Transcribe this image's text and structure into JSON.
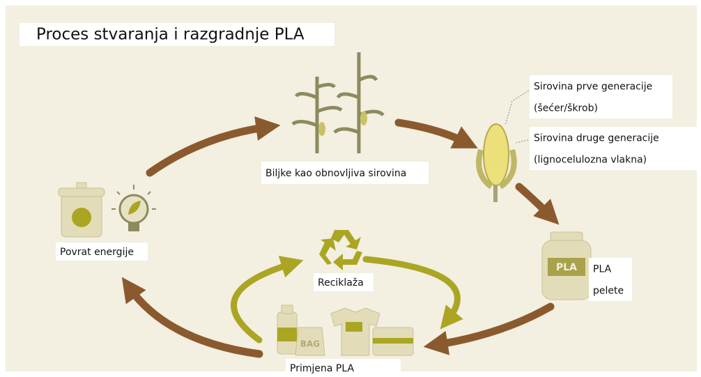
{
  "title": "Proces stvaranja i razgradnje PLA",
  "nodes": [
    {
      "id": "plants",
      "lines": [
        "Biljke kao obnovljiva sirovina"
      ]
    },
    {
      "id": "first-gen",
      "lines": [
        "Sirovina prve generacije",
        "(šećer/škrob)"
      ]
    },
    {
      "id": "second-gen",
      "lines": [
        "Sirovina druge generacije",
        "(lignocelulozna vlakna)"
      ]
    },
    {
      "id": "pellets",
      "lines": [
        "PLA",
        "pelete"
      ]
    },
    {
      "id": "recycling",
      "lines": [
        "Reciklaža"
      ]
    },
    {
      "id": "application",
      "lines": [
        "Primjena PLA"
      ]
    },
    {
      "id": "energy",
      "lines": [
        "Povrat energije"
      ]
    }
  ],
  "icons": {
    "jar_label": "PLA",
    "bag_label": "BAG"
  }
}
